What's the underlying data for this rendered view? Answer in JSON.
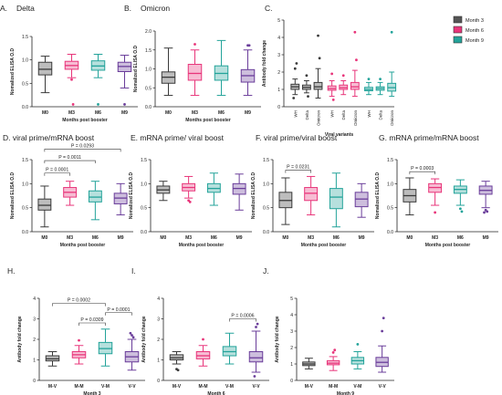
{
  "colors": {
    "month0": "#3a3a3a",
    "month3": "#e8357a",
    "month6": "#23a39a",
    "month9": "#6a3d9a",
    "axis": "#222222"
  },
  "chart_data": [
    {
      "id": "A",
      "type": "box",
      "title": "A.",
      "subtitle": "Delta",
      "ylabel": "Nomalized ELISA O.D",
      "xlabel": "Months post booster",
      "categories": [
        "M0",
        "M3",
        "M6",
        "M9"
      ],
      "ylim": [
        0,
        1.5
      ],
      "yticks": [
        "0.0",
        "0.5",
        "1.0",
        "1.5"
      ],
      "boxes": [
        {
          "min": 0.3,
          "q1": 0.68,
          "median": 0.8,
          "q3": 0.95,
          "max": 1.08,
          "outliers": []
        },
        {
          "min": 0.62,
          "q1": 0.8,
          "median": 0.88,
          "q3": 0.97,
          "max": 1.12,
          "outliers": [
            0.58,
            0.05
          ]
        },
        {
          "min": 0.62,
          "q1": 0.78,
          "median": 0.87,
          "q3": 0.98,
          "max": 1.12,
          "outliers": [
            0.05
          ]
        },
        {
          "min": 0.4,
          "q1": 0.75,
          "median": 0.86,
          "q3": 0.95,
          "max": 1.1,
          "outliers": [
            0.05
          ]
        }
      ],
      "annotations": []
    },
    {
      "id": "B",
      "type": "box",
      "title": "B.",
      "subtitle": "Omicron",
      "ylabel": "Nomalized ELISA O.D",
      "xlabel": "Months post booster",
      "categories": [
        "M0",
        "M3",
        "M6",
        "M9"
      ],
      "ylim": [
        0,
        2.0
      ],
      "yticks": [
        "0.0",
        "0.5",
        "1.0",
        "1.5",
        "2.0"
      ],
      "boxes": [
        {
          "min": 0.3,
          "q1": 0.62,
          "median": 0.78,
          "q3": 0.92,
          "max": 1.55,
          "outliers": []
        },
        {
          "min": 0.3,
          "q1": 0.7,
          "median": 0.88,
          "q3": 1.12,
          "max": 1.5,
          "outliers": [
            1.65
          ]
        },
        {
          "min": 0.3,
          "q1": 0.7,
          "median": 0.88,
          "q3": 1.08,
          "max": 1.75,
          "outliers": []
        },
        {
          "min": 0.3,
          "q1": 0.65,
          "median": 0.82,
          "q3": 0.98,
          "max": 1.5,
          "outliers": [
            1.62,
            1.62
          ]
        }
      ],
      "annotations": []
    },
    {
      "id": "C",
      "type": "box",
      "title": "C.",
      "ylabel": "Antibody fold change",
      "xlabel": "Viral variants",
      "categories": [
        "WH",
        "Delta",
        "Omicron",
        "WH",
        "Delta",
        "Omicron",
        "WH",
        "Delta",
        "Omicron"
      ],
      "ylim": [
        0,
        5
      ],
      "yticks": [
        "0",
        "1",
        "2",
        "3",
        "4",
        "5"
      ],
      "legend": [
        "Month 3",
        "Month 6",
        "Month 9"
      ],
      "legend_position": "right",
      "boxes": [
        {
          "min": 0.7,
          "q1": 1.0,
          "median": 1.15,
          "q3": 1.3,
          "max": 1.6,
          "outliers": [
            2.2,
            2.5,
            0.5
          ]
        },
        {
          "min": 0.8,
          "q1": 1.0,
          "median": 1.12,
          "q3": 1.25,
          "max": 1.5,
          "outliers": [
            1.8,
            0.6
          ]
        },
        {
          "min": 0.5,
          "q1": 1.0,
          "median": 1.15,
          "q3": 1.4,
          "max": 2.2,
          "outliers": [
            4.1,
            2.8
          ]
        },
        {
          "min": 0.6,
          "q1": 0.95,
          "median": 1.05,
          "q3": 1.2,
          "max": 1.5,
          "outliers": [
            1.9,
            0.4
          ]
        },
        {
          "min": 0.7,
          "q1": 1.0,
          "median": 1.1,
          "q3": 1.25,
          "max": 1.5,
          "outliers": [
            1.8
          ]
        },
        {
          "min": 0.6,
          "q1": 1.0,
          "median": 1.15,
          "q3": 1.4,
          "max": 2.1,
          "outliers": [
            4.3,
            2.7
          ]
        },
        {
          "min": 0.7,
          "q1": 0.92,
          "median": 1.0,
          "q3": 1.12,
          "max": 1.4,
          "outliers": [
            1.6
          ]
        },
        {
          "min": 0.7,
          "q1": 0.95,
          "median": 1.05,
          "q3": 1.15,
          "max": 1.4,
          "outliers": [
            1.6
          ]
        },
        {
          "min": 0.6,
          "q1": 0.9,
          "median": 1.1,
          "q3": 1.35,
          "max": 2.0,
          "outliers": [
            4.3
          ]
        }
      ],
      "annotations": []
    },
    {
      "id": "D",
      "type": "box",
      "title": "D. viral prime/mRNA  boost",
      "ylabel": "Nomalized ELISA O.D",
      "xlabel": "Months post booster",
      "categories": [
        "M0",
        "M3",
        "M6",
        "M9"
      ],
      "ylim": [
        0,
        1.5
      ],
      "yticks": [
        "0.0",
        "0.5",
        "1.0",
        "1.5"
      ],
      "boxes": [
        {
          "min": 0.1,
          "q1": 0.45,
          "median": 0.55,
          "q3": 0.68,
          "max": 0.95,
          "outliers": []
        },
        {
          "min": 0.55,
          "q1": 0.72,
          "median": 0.82,
          "q3": 0.92,
          "max": 1.05,
          "outliers": []
        },
        {
          "min": 0.25,
          "q1": 0.62,
          "median": 0.72,
          "q3": 0.85,
          "max": 1.05,
          "outliers": []
        },
        {
          "min": 0.35,
          "q1": 0.58,
          "median": 0.7,
          "q3": 0.8,
          "max": 1.0,
          "outliers": []
        }
      ],
      "annotations": [
        {
          "text": "P = 0.0293",
          "from": 0,
          "to": 3,
          "y": 1.72
        },
        {
          "text": "P = 0.0011",
          "from": 0,
          "to": 2,
          "y": 1.48
        },
        {
          "text": "P = 0.0001",
          "from": 0,
          "to": 1,
          "y": 1.22
        }
      ]
    },
    {
      "id": "E",
      "type": "box",
      "title": "E. mRNA prime/ viral boost",
      "ylabel": "Nomalized ELISA O.D",
      "xlabel": "Months post booster",
      "categories": [
        "M0",
        "M3",
        "M6",
        "M9"
      ],
      "ylim": [
        0,
        1.5
      ],
      "yticks": [
        "0.0",
        "0.5",
        "1.0",
        "1.5"
      ],
      "boxes": [
        {
          "min": 0.65,
          "q1": 0.8,
          "median": 0.87,
          "q3": 0.95,
          "max": 1.05,
          "outliers": []
        },
        {
          "min": 0.7,
          "q1": 0.85,
          "median": 0.92,
          "q3": 1.0,
          "max": 1.15,
          "outliers": [
            0.65,
            0.62
          ]
        },
        {
          "min": 0.55,
          "q1": 0.82,
          "median": 0.9,
          "q3": 1.0,
          "max": 1.22,
          "outliers": []
        },
        {
          "min": 0.45,
          "q1": 0.78,
          "median": 0.9,
          "q3": 1.0,
          "max": 1.2,
          "outliers": []
        }
      ],
      "annotations": []
    },
    {
      "id": "F",
      "type": "box",
      "title": "F. viral prime/viral boost",
      "ylabel": "Nomalized ELISA O.D",
      "xlabel": "Months post booster",
      "categories": [
        "M0",
        "M3",
        "M6",
        "M9"
      ],
      "ylim": [
        0,
        1.5
      ],
      "yticks": [
        "0.0",
        "0.5",
        "1.0",
        "1.5"
      ],
      "boxes": [
        {
          "min": 0.15,
          "q1": 0.5,
          "median": 0.65,
          "q3": 0.82,
          "max": 1.12,
          "outliers": []
        },
        {
          "min": 0.35,
          "q1": 0.65,
          "median": 0.8,
          "q3": 0.92,
          "max": 1.15,
          "outliers": []
        },
        {
          "min": 0.1,
          "q1": 0.48,
          "median": 0.72,
          "q3": 0.9,
          "max": 1.22,
          "outliers": []
        },
        {
          "min": 0.3,
          "q1": 0.52,
          "median": 0.68,
          "q3": 0.82,
          "max": 1.0,
          "outliers": []
        }
      ],
      "annotations": [
        {
          "text": "P = 0.0231",
          "from": 0,
          "to": 1,
          "y": 1.28
        }
      ]
    },
    {
      "id": "G",
      "type": "box",
      "title": "G. mRNA prime/mRNA  boost",
      "ylabel": "Nomalized ELISA O.D",
      "xlabel": "Months post booster",
      "categories": [
        "M0",
        "M3",
        "M6",
        "M9"
      ],
      "ylim": [
        0,
        1.5
      ],
      "yticks": [
        "0.0",
        "0.5",
        "1.0",
        "1.5"
      ],
      "boxes": [
        {
          "min": 0.35,
          "q1": 0.62,
          "median": 0.75,
          "q3": 0.88,
          "max": 1.12,
          "outliers": []
        },
        {
          "min": 0.55,
          "q1": 0.82,
          "median": 0.92,
          "q3": 1.0,
          "max": 1.1,
          "outliers": [
            0.4
          ]
        },
        {
          "min": 0.55,
          "q1": 0.8,
          "median": 0.88,
          "q3": 0.95,
          "max": 1.08,
          "outliers": [
            0.48,
            0.42
          ]
        },
        {
          "min": 0.5,
          "q1": 0.78,
          "median": 0.86,
          "q3": 0.95,
          "max": 1.05,
          "outliers": [
            0.45,
            0.42,
            0.4
          ]
        }
      ],
      "annotations": [
        {
          "text": "P = 0.0003",
          "from": 0,
          "to": 1,
          "y": 1.25
        }
      ]
    },
    {
      "id": "H",
      "type": "box",
      "title": "H.",
      "ylabel": "Antibody fold change",
      "xlabel": "Month 3",
      "categories": [
        "M-V",
        "M-M",
        "V-M",
        "V-V"
      ],
      "ylim": [
        0,
        4
      ],
      "yticks": [
        "0",
        "1",
        "2",
        "3",
        "4"
      ],
      "boxes": [
        {
          "min": 0.7,
          "q1": 0.95,
          "median": 1.05,
          "q3": 1.2,
          "max": 1.4,
          "outliers": []
        },
        {
          "min": 0.8,
          "q1": 1.1,
          "median": 1.25,
          "q3": 1.4,
          "max": 1.7,
          "outliers": [
            1.95
          ]
        },
        {
          "min": 0.7,
          "q1": 1.3,
          "median": 1.55,
          "q3": 1.85,
          "max": 2.5,
          "outliers": []
        },
        {
          "min": 0.5,
          "q1": 0.9,
          "median": 1.15,
          "q3": 1.4,
          "max": 2.0,
          "outliers": [
            2.2,
            2.1,
            2.3
          ]
        }
      ],
      "annotations": [
        {
          "text": "P = 0.0002",
          "from": 0,
          "to": 2,
          "y": 3.75
        },
        {
          "text": "P = 0.0001",
          "from": 2,
          "to": 3,
          "y": 3.3
        },
        {
          "text": "P = 0.0309",
          "from": 1,
          "to": 2,
          "y": 2.8
        }
      ]
    },
    {
      "id": "I",
      "type": "box",
      "title": "I.",
      "ylabel": "Antibody fold change",
      "xlabel": "Month 6",
      "categories": [
        "M-V",
        "M-M",
        "V-M",
        "V-V"
      ],
      "ylim": [
        0,
        4
      ],
      "yticks": [
        "0",
        "1",
        "2",
        "3",
        "4"
      ],
      "boxes": [
        {
          "min": 0.8,
          "q1": 1.0,
          "median": 1.1,
          "q3": 1.25,
          "max": 1.4,
          "outliers": [
            0.55,
            0.5
          ]
        },
        {
          "min": 0.7,
          "q1": 1.05,
          "median": 1.2,
          "q3": 1.4,
          "max": 1.7,
          "outliers": [
            2.0
          ]
        },
        {
          "min": 0.8,
          "q1": 1.2,
          "median": 1.4,
          "q3": 1.65,
          "max": 2.3,
          "outliers": []
        },
        {
          "min": 0.4,
          "q1": 0.9,
          "median": 1.1,
          "q3": 1.4,
          "max": 2.4,
          "outliers": [
            2.6,
            2.75,
            0.2
          ]
        }
      ],
      "annotations": [
        {
          "text": "P = 0.0006",
          "from": 2,
          "to": 3,
          "y": 3.0
        }
      ]
    },
    {
      "id": "J",
      "type": "box",
      "title": "J.",
      "ylabel": "Antibody fold change",
      "xlabel": "Month 9",
      "categories": [
        "M-V",
        "M-M",
        "V-M",
        "V-V"
      ],
      "ylim": [
        0,
        5
      ],
      "yticks": [
        "0",
        "1",
        "2",
        "3",
        "4",
        "5"
      ],
      "boxes": [
        {
          "min": 0.7,
          "q1": 0.9,
          "median": 1.0,
          "q3": 1.12,
          "max": 1.35,
          "outliers": []
        },
        {
          "min": 0.6,
          "q1": 0.95,
          "median": 1.05,
          "q3": 1.2,
          "max": 1.45,
          "outliers": [
            1.7,
            1.85
          ]
        },
        {
          "min": 0.7,
          "q1": 1.0,
          "median": 1.2,
          "q3": 1.4,
          "max": 1.75,
          "outliers": [
            2.2
          ]
        },
        {
          "min": 0.5,
          "q1": 0.85,
          "median": 1.1,
          "q3": 1.4,
          "max": 2.1,
          "outliers": [
            3.0,
            3.8
          ]
        }
      ],
      "annotations": []
    }
  ]
}
